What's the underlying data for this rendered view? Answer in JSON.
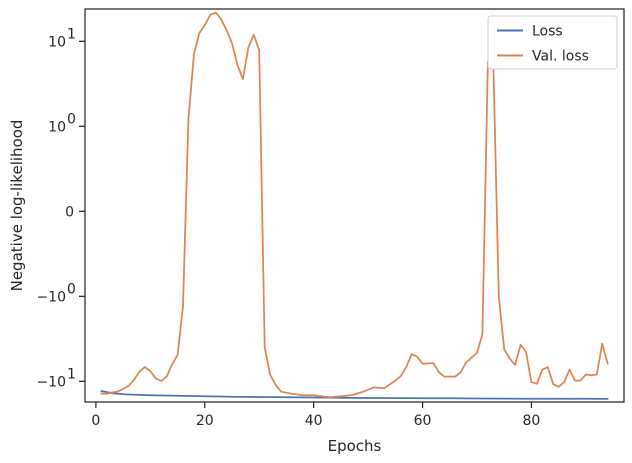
{
  "chart_data": {
    "type": "line",
    "xlabel": "Epochs",
    "ylabel": "Negative log-likelihood",
    "xlim": [
      -2,
      97
    ],
    "ylim": [
      -17.5,
      24
    ],
    "y_scale": "symlog",
    "y_linthresh": 1,
    "grid": false,
    "legend_position": "top-right",
    "x_ticks": [
      {
        "value": 0,
        "label": "0"
      },
      {
        "value": 20,
        "label": "20"
      },
      {
        "value": 40,
        "label": "40"
      },
      {
        "value": 60,
        "label": "60"
      },
      {
        "value": 80,
        "label": "80"
      }
    ],
    "y_ticks": [
      {
        "value": 10,
        "base": "10",
        "exp": "1"
      },
      {
        "value": 1,
        "base": "10",
        "exp": "0"
      },
      {
        "value": 0,
        "base": "0",
        "exp": ""
      },
      {
        "value": -1,
        "base": "−10",
        "exp": "0"
      },
      {
        "value": -10,
        "base": "−10",
        "exp": "1"
      }
    ],
    "series": [
      {
        "name": "Loss",
        "color": "#4c72b0",
        "points": [
          [
            1,
            -13.0
          ],
          [
            3,
            -13.8
          ],
          [
            6,
            -14.3
          ],
          [
            10,
            -14.6
          ],
          [
            15,
            -14.8
          ],
          [
            20,
            -15.0
          ],
          [
            25,
            -15.15
          ],
          [
            30,
            -15.3
          ],
          [
            35,
            -15.4
          ],
          [
            40,
            -15.5
          ],
          [
            45,
            -15.6
          ],
          [
            50,
            -15.7
          ],
          [
            55,
            -15.75
          ],
          [
            60,
            -15.8
          ],
          [
            65,
            -15.85
          ],
          [
            70,
            -15.9
          ],
          [
            75,
            -15.95
          ],
          [
            80,
            -16.0
          ],
          [
            85,
            -16.0
          ],
          [
            90,
            -16.05
          ],
          [
            94,
            -16.1
          ]
        ]
      },
      {
        "name": "Val. loss",
        "color": "#dd8452",
        "points": [
          [
            1,
            -13.9
          ],
          [
            2,
            -14.0
          ],
          [
            3,
            -13.5
          ],
          [
            4,
            -13.2
          ],
          [
            5,
            -12.3
          ],
          [
            6,
            -11.3
          ],
          [
            7,
            -9.6
          ],
          [
            8,
            -7.7
          ],
          [
            9,
            -6.8
          ],
          [
            10,
            -7.6
          ],
          [
            11,
            -9.2
          ],
          [
            12,
            -9.9
          ],
          [
            13,
            -8.8
          ],
          [
            14,
            -6.3
          ],
          [
            15,
            -4.9
          ],
          [
            16,
            -1.3
          ],
          [
            17,
            1.2
          ],
          [
            18,
            7.0
          ],
          [
            19,
            12.5
          ],
          [
            20,
            15.5
          ],
          [
            21,
            20.5
          ],
          [
            22,
            21.8
          ],
          [
            23,
            18.2
          ],
          [
            24,
            13.5
          ],
          [
            25,
            9.5
          ],
          [
            26,
            5.3
          ],
          [
            27,
            3.6
          ],
          [
            28,
            8.4
          ],
          [
            29,
            12.0
          ],
          [
            30,
            7.8
          ],
          [
            31,
            -4.0
          ],
          [
            32,
            -8.3
          ],
          [
            33,
            -11.0
          ],
          [
            34,
            -13.2
          ],
          [
            36,
            -14.0
          ],
          [
            38,
            -14.6
          ],
          [
            40,
            -14.6
          ],
          [
            42,
            -15.2
          ],
          [
            43,
            -15.4
          ],
          [
            45,
            -15.0
          ],
          [
            47,
            -14.5
          ],
          [
            49,
            -13.3
          ],
          [
            51,
            -11.8
          ],
          [
            53,
            -12.0
          ],
          [
            55,
            -9.8
          ],
          [
            56,
            -8.7
          ],
          [
            57,
            -6.8
          ],
          [
            58,
            -4.8
          ],
          [
            59,
            -5.1
          ],
          [
            60,
            -6.2
          ],
          [
            62,
            -6.1
          ],
          [
            63,
            -7.8
          ],
          [
            64,
            -8.8
          ],
          [
            66,
            -8.8
          ],
          [
            67,
            -7.8
          ],
          [
            68,
            -6.0
          ],
          [
            70,
            -4.6
          ],
          [
            71,
            -2.8
          ],
          [
            72,
            5.8
          ],
          [
            73,
            5.8
          ],
          [
            74,
            -1.0
          ],
          [
            75,
            -4.2
          ],
          [
            76,
            -5.4
          ],
          [
            77,
            -6.4
          ],
          [
            78,
            -3.7
          ],
          [
            79,
            -4.5
          ],
          [
            80,
            -10.2
          ],
          [
            81,
            -10.7
          ],
          [
            82,
            -7.3
          ],
          [
            83,
            -6.8
          ],
          [
            84,
            -10.8
          ],
          [
            85,
            -11.6
          ],
          [
            86,
            -10.2
          ],
          [
            87,
            -7.3
          ],
          [
            88,
            -9.8
          ],
          [
            89,
            -9.8
          ],
          [
            90,
            -8.3
          ],
          [
            91,
            -8.5
          ],
          [
            92,
            -8.3
          ],
          [
            93,
            -3.6
          ],
          [
            94,
            -6.2
          ]
        ]
      }
    ]
  }
}
